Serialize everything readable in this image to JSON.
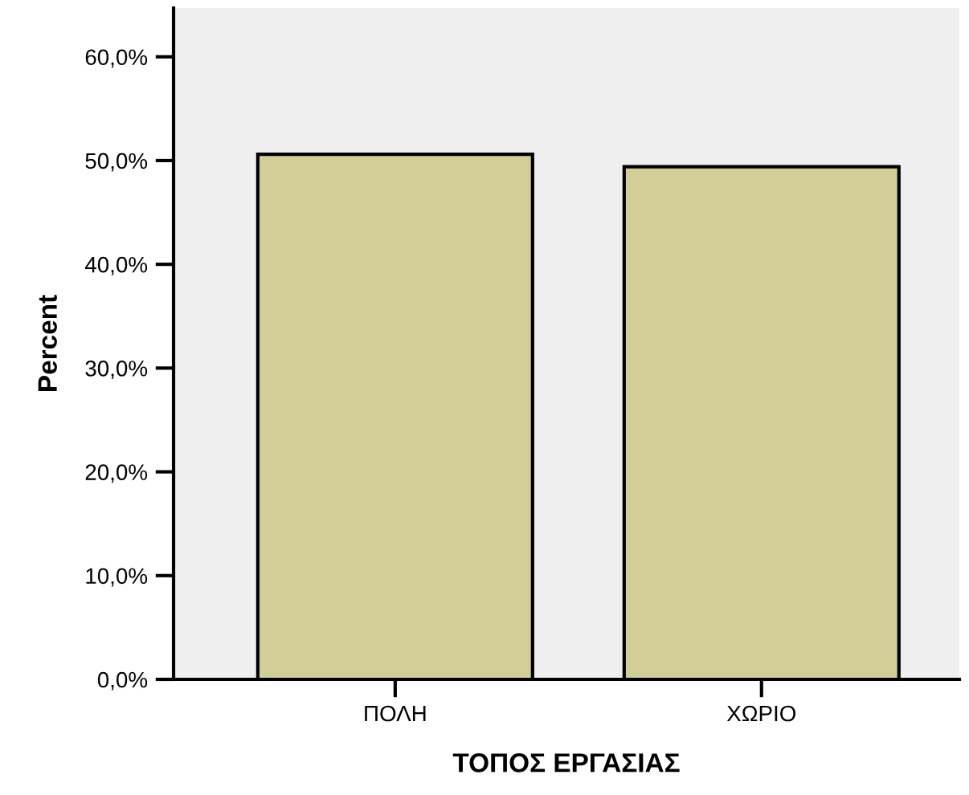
{
  "chart_data": {
    "type": "bar",
    "xlabel": "ΤΟΠΟΣ ΕΡΓΑΣΙΑΣ",
    "ylabel": "Percent",
    "categories": [
      "ΠΟΛΗ",
      "ΧΩΡΙΟ"
    ],
    "values": [
      50.6,
      49.4
    ],
    "color": "#d3ce97",
    "ylim": [
      0,
      64.7
    ],
    "yticks": [
      {
        "value": 0,
        "label": "0,0%"
      },
      {
        "value": 10,
        "label": "10,0%"
      },
      {
        "value": 20,
        "label": "20,0%"
      },
      {
        "value": 30,
        "label": "30,0%"
      },
      {
        "value": 40,
        "label": "40,0%"
      },
      {
        "value": 50,
        "label": "50,0%"
      },
      {
        "value": 60,
        "label": "60,0%"
      }
    ],
    "grid": false
  }
}
